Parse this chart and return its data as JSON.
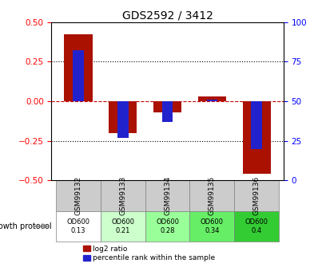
{
  "title": "GDS2592 / 3412",
  "samples": [
    "GSM99132",
    "GSM99133",
    "GSM99134",
    "GSM99135",
    "GSM99136"
  ],
  "log2_ratio": [
    0.42,
    -0.2,
    -0.07,
    0.03,
    -0.46
  ],
  "percentile_rank": [
    82,
    27,
    37,
    51,
    20
  ],
  "growth_protocol_labels": [
    "OD600\n0.13",
    "OD600\n0.21",
    "OD600\n0.28",
    "OD600\n0.34",
    "OD600\n0.4"
  ],
  "growth_protocol_colors": [
    "#ffffff",
    "#ccffcc",
    "#99ff99",
    "#66ee66",
    "#33cc33"
  ],
  "ylim_left": [
    -0.5,
    0.5
  ],
  "ylim_right": [
    0,
    100
  ],
  "left_ticks": [
    -0.5,
    -0.25,
    0.0,
    0.25,
    0.5
  ],
  "right_ticks": [
    0,
    25,
    50,
    75,
    100
  ],
  "bar_color_red": "#aa1100",
  "bar_color_blue": "#2222cc",
  "bar_width": 0.35,
  "grid_color": "#000000",
  "zero_line_color": "#cc0000",
  "background_plot": "#ffffff",
  "background_table": "#cccccc"
}
